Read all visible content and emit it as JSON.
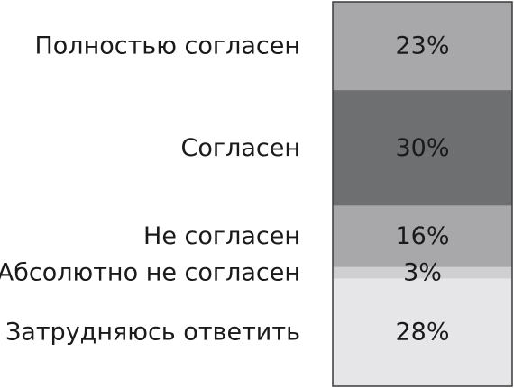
{
  "chart_data": {
    "type": "bar",
    "orientation": "stacked-vertical",
    "unit": "%",
    "categories": [
      "Полностью согласен",
      "Согласен",
      "Не согласен",
      "Абсолютно не согласен",
      "Затрудняюсь ответить"
    ],
    "values": [
      23,
      30,
      16,
      3,
      28
    ],
    "value_labels": [
      "23%",
      "30%",
      "16%",
      "3%",
      "28%"
    ],
    "colors": [
      "#a8a8aa",
      "#6e6f71",
      "#a8a8aa",
      "#cfcfd1",
      "#e6e6e8"
    ],
    "border_color": "#3a3a3a"
  }
}
